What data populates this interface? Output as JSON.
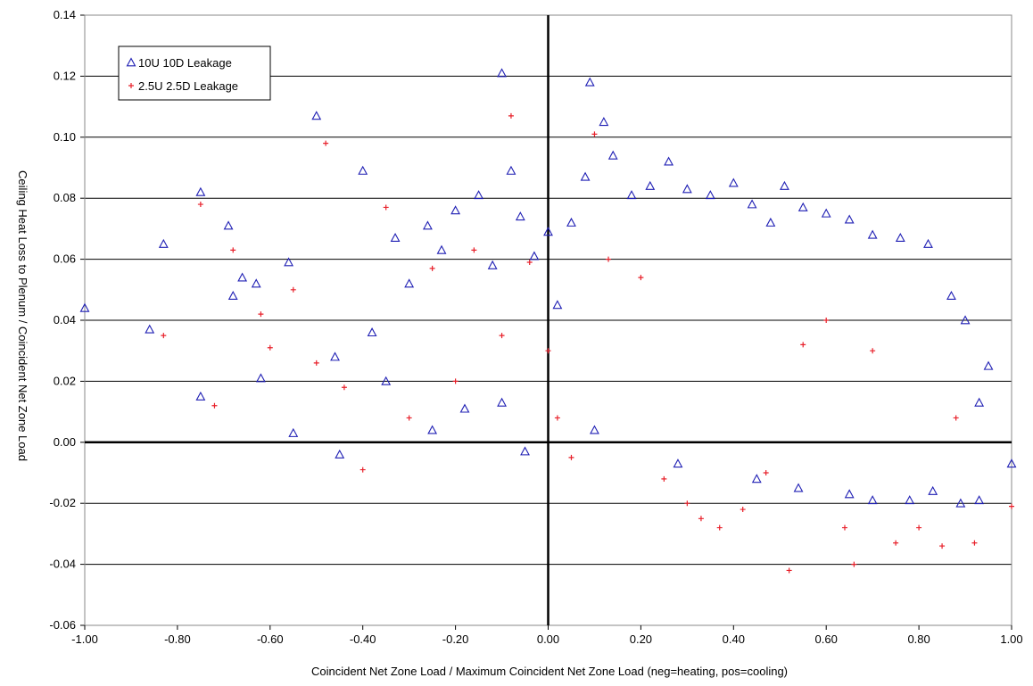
{
  "chart_data": {
    "type": "scatter",
    "title": "",
    "xlabel": "Coincident Net Zone Load / Maximum Coincident Net Zone Load (neg=heating, pos=cooling)",
    "ylabel": "Ceiling Heat Loss to Plenum / Coincident Net Zone Load",
    "xlim": [
      -1.0,
      1.0
    ],
    "ylim": [
      -0.06,
      0.14
    ],
    "x_ticks": [
      -1.0,
      -0.8,
      -0.6,
      -0.4,
      -0.2,
      0.0,
      0.2,
      0.4,
      0.6,
      0.8,
      1.0
    ],
    "x_tick_labels": [
      "-1.00",
      "-0.80",
      "-0.60",
      "-0.40",
      "-0.20",
      "0.00",
      "0.20",
      "0.40",
      "0.60",
      "0.80",
      "1.00"
    ],
    "y_ticks": [
      -0.06,
      -0.04,
      -0.02,
      0.0,
      0.02,
      0.04,
      0.06,
      0.08,
      0.1,
      0.12,
      0.14
    ],
    "y_tick_labels": [
      "-0.06",
      "-0.04",
      "-0.02",
      "0.00",
      "0.02",
      "0.04",
      "0.06",
      "0.08",
      "0.10",
      "0.12",
      "0.14"
    ],
    "grid": "horizontal",
    "legend_position": "top-left",
    "series": [
      {
        "name": "10U 10D Leakage",
        "marker": "triangle",
        "color": "#1f1fb4",
        "points": [
          [
            -1.0,
            0.044
          ],
          [
            -0.86,
            0.037
          ],
          [
            -0.83,
            0.065
          ],
          [
            -0.75,
            0.082
          ],
          [
            -0.75,
            0.015
          ],
          [
            -0.69,
            0.071
          ],
          [
            -0.68,
            0.048
          ],
          [
            -0.66,
            0.054
          ],
          [
            -0.63,
            0.052
          ],
          [
            -0.62,
            0.021
          ],
          [
            -0.56,
            0.059
          ],
          [
            -0.55,
            0.003
          ],
          [
            -0.5,
            0.107
          ],
          [
            -0.46,
            0.028
          ],
          [
            -0.45,
            -0.004
          ],
          [
            -0.4,
            0.089
          ],
          [
            -0.38,
            0.036
          ],
          [
            -0.35,
            0.02
          ],
          [
            -0.33,
            0.067
          ],
          [
            -0.3,
            0.052
          ],
          [
            -0.26,
            0.071
          ],
          [
            -0.23,
            0.063
          ],
          [
            -0.2,
            0.076
          ],
          [
            -0.15,
            0.081
          ],
          [
            -0.12,
            0.058
          ],
          [
            -0.1,
            0.121
          ],
          [
            -0.08,
            0.089
          ],
          [
            -0.06,
            0.074
          ],
          [
            -0.03,
            0.061
          ],
          [
            0.0,
            0.069
          ],
          [
            0.02,
            0.045
          ],
          [
            0.05,
            0.072
          ],
          [
            0.08,
            0.087
          ],
          [
            0.09,
            0.118
          ],
          [
            0.12,
            0.105
          ],
          [
            0.14,
            0.094
          ],
          [
            0.18,
            0.081
          ],
          [
            0.22,
            0.084
          ],
          [
            0.26,
            0.092
          ],
          [
            0.3,
            0.083
          ],
          [
            0.35,
            0.081
          ],
          [
            0.4,
            0.085
          ],
          [
            0.44,
            0.078
          ],
          [
            0.48,
            0.072
          ],
          [
            0.51,
            0.084
          ],
          [
            0.55,
            0.077
          ],
          [
            0.6,
            0.075
          ],
          [
            0.65,
            0.073
          ],
          [
            0.7,
            0.068
          ],
          [
            0.76,
            0.067
          ],
          [
            0.82,
            0.065
          ],
          [
            0.87,
            0.048
          ],
          [
            0.9,
            0.04
          ],
          [
            0.93,
            0.013
          ],
          [
            0.95,
            0.025
          ],
          [
            0.89,
            -0.02
          ],
          [
            0.93,
            -0.019
          ],
          [
            1.0,
            -0.007
          ],
          [
            0.83,
            -0.016
          ],
          [
            0.78,
            -0.019
          ],
          [
            0.7,
            -0.019
          ],
          [
            0.65,
            -0.017
          ],
          [
            0.54,
            -0.015
          ],
          [
            0.45,
            -0.012
          ],
          [
            0.28,
            -0.007
          ],
          [
            0.1,
            0.004
          ],
          [
            -0.05,
            -0.003
          ],
          [
            -0.1,
            0.013
          ],
          [
            -0.18,
            0.011
          ],
          [
            -0.25,
            0.004
          ]
        ]
      },
      {
        "name": "2.5U 2.5D Leakage",
        "marker": "plus",
        "color": "#e8202a",
        "points": [
          [
            -0.83,
            0.035
          ],
          [
            -0.75,
            0.078
          ],
          [
            -0.72,
            0.012
          ],
          [
            -0.68,
            0.063
          ],
          [
            -0.62,
            0.042
          ],
          [
            -0.6,
            0.031
          ],
          [
            -0.55,
            0.05
          ],
          [
            -0.5,
            0.026
          ],
          [
            -0.48,
            0.098
          ],
          [
            -0.44,
            0.018
          ],
          [
            -0.4,
            -0.009
          ],
          [
            -0.35,
            0.077
          ],
          [
            -0.3,
            0.008
          ],
          [
            -0.25,
            0.057
          ],
          [
            -0.2,
            0.02
          ],
          [
            -0.16,
            0.063
          ],
          [
            -0.1,
            0.035
          ],
          [
            -0.08,
            0.107
          ],
          [
            -0.04,
            0.059
          ],
          [
            0.0,
            0.03
          ],
          [
            0.02,
            0.008
          ],
          [
            0.05,
            -0.005
          ],
          [
            0.1,
            0.101
          ],
          [
            0.13,
            0.06
          ],
          [
            0.2,
            0.054
          ],
          [
            0.25,
            -0.012
          ],
          [
            0.3,
            -0.02
          ],
          [
            0.33,
            -0.025
          ],
          [
            0.37,
            -0.028
          ],
          [
            0.42,
            -0.022
          ],
          [
            0.47,
            -0.01
          ],
          [
            0.52,
            -0.042
          ],
          [
            0.55,
            0.032
          ],
          [
            0.6,
            0.04
          ],
          [
            0.64,
            -0.028
          ],
          [
            0.66,
            -0.04
          ],
          [
            0.7,
            0.03
          ],
          [
            0.75,
            -0.033
          ],
          [
            0.8,
            -0.028
          ],
          [
            0.85,
            -0.034
          ],
          [
            0.88,
            0.008
          ],
          [
            0.92,
            -0.033
          ],
          [
            1.0,
            -0.021
          ]
        ]
      }
    ]
  }
}
